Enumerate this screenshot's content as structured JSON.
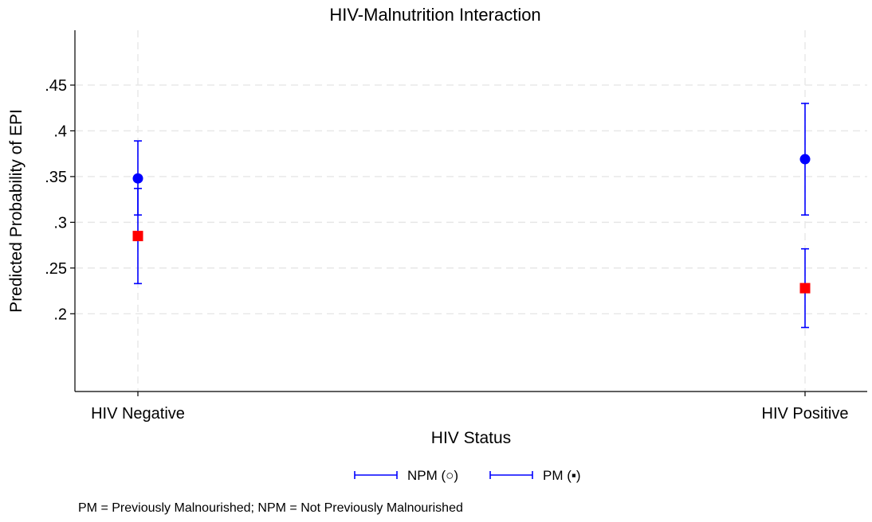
{
  "chart_data": {
    "type": "scatter",
    "title": "HIV-Malnutrition Interaction",
    "xlabel": "HIV Status",
    "ylabel": "Predicted Probability of EPI",
    "categories": [
      "HIV Negative",
      "HIV Positive"
    ],
    "ylim": [
      0.115,
      0.51
    ],
    "yticks": [
      0.2,
      0.25,
      0.3,
      0.35,
      0.4,
      0.45
    ],
    "ytick_labels": [
      ".2",
      ".25",
      ".3",
      ".35",
      ".4",
      ".45"
    ],
    "grid": true,
    "legend_position": "bottom",
    "series": [
      {
        "name": "NPM (○)",
        "color": "#0000ff",
        "marker": "circle",
        "values": [
          0.348,
          0.369
        ],
        "ci_low": [
          0.308,
          0.308
        ],
        "ci_high": [
          0.389,
          0.43
        ]
      },
      {
        "name": "PM (▪)",
        "color": "#ff0000",
        "marker": "square",
        "values": [
          0.285,
          0.228
        ],
        "ci_low": [
          0.233,
          0.185
        ],
        "ci_high": [
          0.337,
          0.271
        ]
      }
    ],
    "errorbar_color": "#0000ff",
    "note": "PM = Previously Malnourished; NPM = Not Previously Malnourished"
  }
}
